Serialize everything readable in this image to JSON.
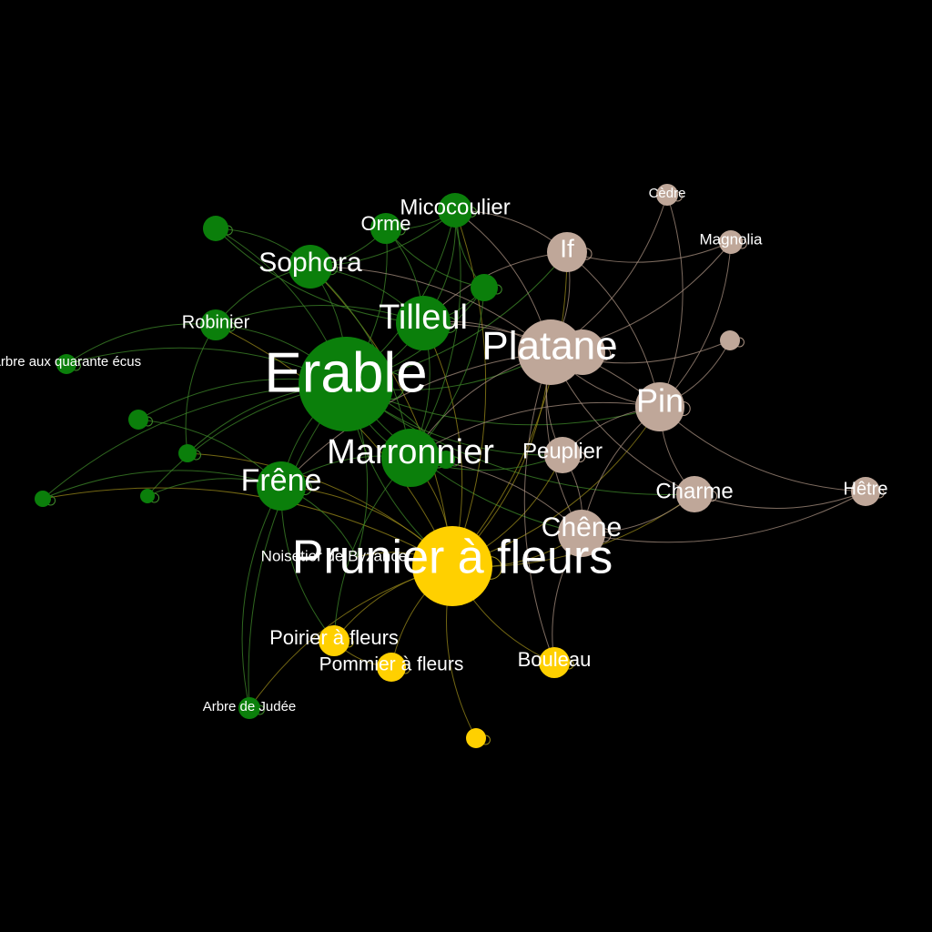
{
  "colors": {
    "background": "#000000",
    "green": "#0b7f0b",
    "yellow": "#ffd000",
    "tan": "#bfa799",
    "label": "#ffffff",
    "edge_green": "#3f8a2a",
    "edge_yellow": "#9a8a1a",
    "edge_tan": "#a89080"
  },
  "nodes": [
    {
      "id": "erable",
      "label": "Erable",
      "group": "green"
    },
    {
      "id": "prunier",
      "label": "Prunier à fleurs",
      "group": "yellow"
    },
    {
      "id": "platane",
      "label": "Platane",
      "group": "tan"
    },
    {
      "id": "platane2",
      "label": "",
      "group": "tan"
    },
    {
      "id": "marronnier",
      "label": "Marronnier",
      "group": "green"
    },
    {
      "id": "tilleul",
      "label": "Tilleul",
      "group": "green"
    },
    {
      "id": "pin",
      "label": "Pin",
      "group": "tan"
    },
    {
      "id": "chene",
      "label": "Chêne",
      "group": "tan"
    },
    {
      "id": "frene",
      "label": "Frêne",
      "group": "green"
    },
    {
      "id": "sophora",
      "label": "Sophora",
      "group": "green"
    },
    {
      "id": "micocoulier",
      "label": "Micocoulier",
      "group": "green"
    },
    {
      "id": "charme",
      "label": "Charme",
      "group": "tan"
    },
    {
      "id": "if",
      "label": "If",
      "group": "tan"
    },
    {
      "id": "peuplier",
      "label": "Peuplier",
      "group": "tan"
    },
    {
      "id": "orme",
      "label": "Orme",
      "group": "green"
    },
    {
      "id": "robinier",
      "label": "Robinier",
      "group": "green"
    },
    {
      "id": "bouleau",
      "label": "Bouleau",
      "group": "yellow"
    },
    {
      "id": "poirier",
      "label": "Poirier à fleurs",
      "group": "yellow"
    },
    {
      "id": "pommier",
      "label": "Pommier à fleurs",
      "group": "yellow"
    },
    {
      "id": "hetre",
      "label": "Hêtre",
      "group": "tan"
    },
    {
      "id": "magnolia",
      "label": "Magnolia",
      "group": "tan"
    },
    {
      "id": "cedre",
      "label": "Cèdre",
      "group": "tan"
    },
    {
      "id": "noisetier",
      "label": "Noisetier de Byzance",
      "group": "green"
    },
    {
      "id": "ginkgo",
      "label": "Arbre aux quarante écus",
      "group": "green"
    },
    {
      "id": "judee",
      "label": "Arbre de Judée",
      "group": "green"
    },
    {
      "id": "g1",
      "label": "",
      "group": "green"
    },
    {
      "id": "g2",
      "label": "",
      "group": "green"
    },
    {
      "id": "g3",
      "label": "",
      "group": "green"
    },
    {
      "id": "g4",
      "label": "",
      "group": "green"
    },
    {
      "id": "g5",
      "label": "",
      "group": "green"
    },
    {
      "id": "g6",
      "label": "",
      "group": "green"
    },
    {
      "id": "g7",
      "label": "",
      "group": "green"
    },
    {
      "id": "t1",
      "label": "",
      "group": "tan"
    },
    {
      "id": "y1",
      "label": "",
      "group": "yellow"
    }
  ],
  "edges": [
    [
      "erable",
      "prunier"
    ],
    [
      "erable",
      "platane"
    ],
    [
      "erable",
      "marronnier"
    ],
    [
      "erable",
      "tilleul"
    ],
    [
      "erable",
      "frene"
    ],
    [
      "erable",
      "sophora"
    ],
    [
      "erable",
      "micocoulier"
    ],
    [
      "erable",
      "orme"
    ],
    [
      "erable",
      "robinier"
    ],
    [
      "erable",
      "ginkgo"
    ],
    [
      "erable",
      "g1"
    ],
    [
      "erable",
      "g2"
    ],
    [
      "erable",
      "g3"
    ],
    [
      "erable",
      "g4"
    ],
    [
      "erable",
      "g5"
    ],
    [
      "erable",
      "pin"
    ],
    [
      "erable",
      "chene"
    ],
    [
      "erable",
      "peuplier"
    ],
    [
      "erable",
      "if"
    ],
    [
      "erable",
      "charme"
    ],
    [
      "erable",
      "g6"
    ],
    [
      "erable",
      "judee"
    ],
    [
      "prunier",
      "platane"
    ],
    [
      "prunier",
      "marronnier"
    ],
    [
      "prunier",
      "pin"
    ],
    [
      "prunier",
      "chene"
    ],
    [
      "prunier",
      "bouleau"
    ],
    [
      "prunier",
      "poirier"
    ],
    [
      "prunier",
      "pommier"
    ],
    [
      "prunier",
      "y1"
    ],
    [
      "prunier",
      "frene"
    ],
    [
      "prunier",
      "tilleul"
    ],
    [
      "prunier",
      "peuplier"
    ],
    [
      "prunier",
      "charme"
    ],
    [
      "prunier",
      "if"
    ],
    [
      "prunier",
      "sophora"
    ],
    [
      "prunier",
      "judee"
    ],
    [
      "prunier",
      "noisetier"
    ],
    [
      "prunier",
      "micocoulier"
    ],
    [
      "prunier",
      "robinier"
    ],
    [
      "prunier",
      "g4"
    ],
    [
      "prunier",
      "g3"
    ],
    [
      "platane",
      "pin"
    ],
    [
      "platane",
      "chene"
    ],
    [
      "platane",
      "if"
    ],
    [
      "platane",
      "peuplier"
    ],
    [
      "platane",
      "charme"
    ],
    [
      "platane",
      "marronnier"
    ],
    [
      "platane",
      "tilleul"
    ],
    [
      "platane",
      "magnolia"
    ],
    [
      "platane",
      "cedre"
    ],
    [
      "platane",
      "t1"
    ],
    [
      "platane",
      "micocoulier"
    ],
    [
      "platane",
      "sophora"
    ],
    [
      "platane",
      "frene"
    ],
    [
      "platane",
      "bouleau"
    ],
    [
      "pin",
      "chene"
    ],
    [
      "pin",
      "charme"
    ],
    [
      "pin",
      "hetre"
    ],
    [
      "pin",
      "peuplier"
    ],
    [
      "pin",
      "magnolia"
    ],
    [
      "pin",
      "cedre"
    ],
    [
      "pin",
      "if"
    ],
    [
      "pin",
      "t1"
    ],
    [
      "pin",
      "marronnier"
    ],
    [
      "pin",
      "tilleul"
    ],
    [
      "chene",
      "charme"
    ],
    [
      "chene",
      "hetre"
    ],
    [
      "chene",
      "peuplier"
    ],
    [
      "chene",
      "bouleau"
    ],
    [
      "chene",
      "marronnier"
    ],
    [
      "charme",
      "hetre"
    ],
    [
      "if",
      "magnolia"
    ],
    [
      "if",
      "micocoulier"
    ],
    [
      "if",
      "tilleul"
    ],
    [
      "marronnier",
      "tilleul"
    ],
    [
      "marronnier",
      "frene"
    ],
    [
      "marronnier",
      "sophora"
    ],
    [
      "marronnier",
      "micocoulier"
    ],
    [
      "marronnier",
      "g6"
    ],
    [
      "marronnier",
      "poirier"
    ],
    [
      "marronnier",
      "peuplier"
    ],
    [
      "tilleul",
      "sophora"
    ],
    [
      "tilleul",
      "micocoulier"
    ],
    [
      "tilleul",
      "orme"
    ],
    [
      "tilleul",
      "g6"
    ],
    [
      "tilleul",
      "robinier"
    ],
    [
      "frene",
      "g2"
    ],
    [
      "frene",
      "g5"
    ],
    [
      "frene",
      "poirier"
    ],
    [
      "frene",
      "judee"
    ],
    [
      "frene",
      "g4"
    ],
    [
      "sophora",
      "orme"
    ],
    [
      "sophora",
      "micocoulier"
    ],
    [
      "sophora",
      "g1"
    ],
    [
      "sophora",
      "robinier"
    ],
    [
      "orme",
      "micocoulier"
    ],
    [
      "orme",
      "g6"
    ],
    [
      "micocoulier",
      "g6"
    ],
    [
      "robinier",
      "ginkgo"
    ],
    [
      "robinier",
      "g3"
    ],
    [
      "g1",
      "tilleul"
    ],
    [
      "g7",
      "erable"
    ],
    [
      "g7",
      "marronnier"
    ],
    [
      "poirier",
      "pommier"
    ],
    [
      "noisetier",
      "erable"
    ],
    [
      "noisetier",
      "frene"
    ]
  ]
}
